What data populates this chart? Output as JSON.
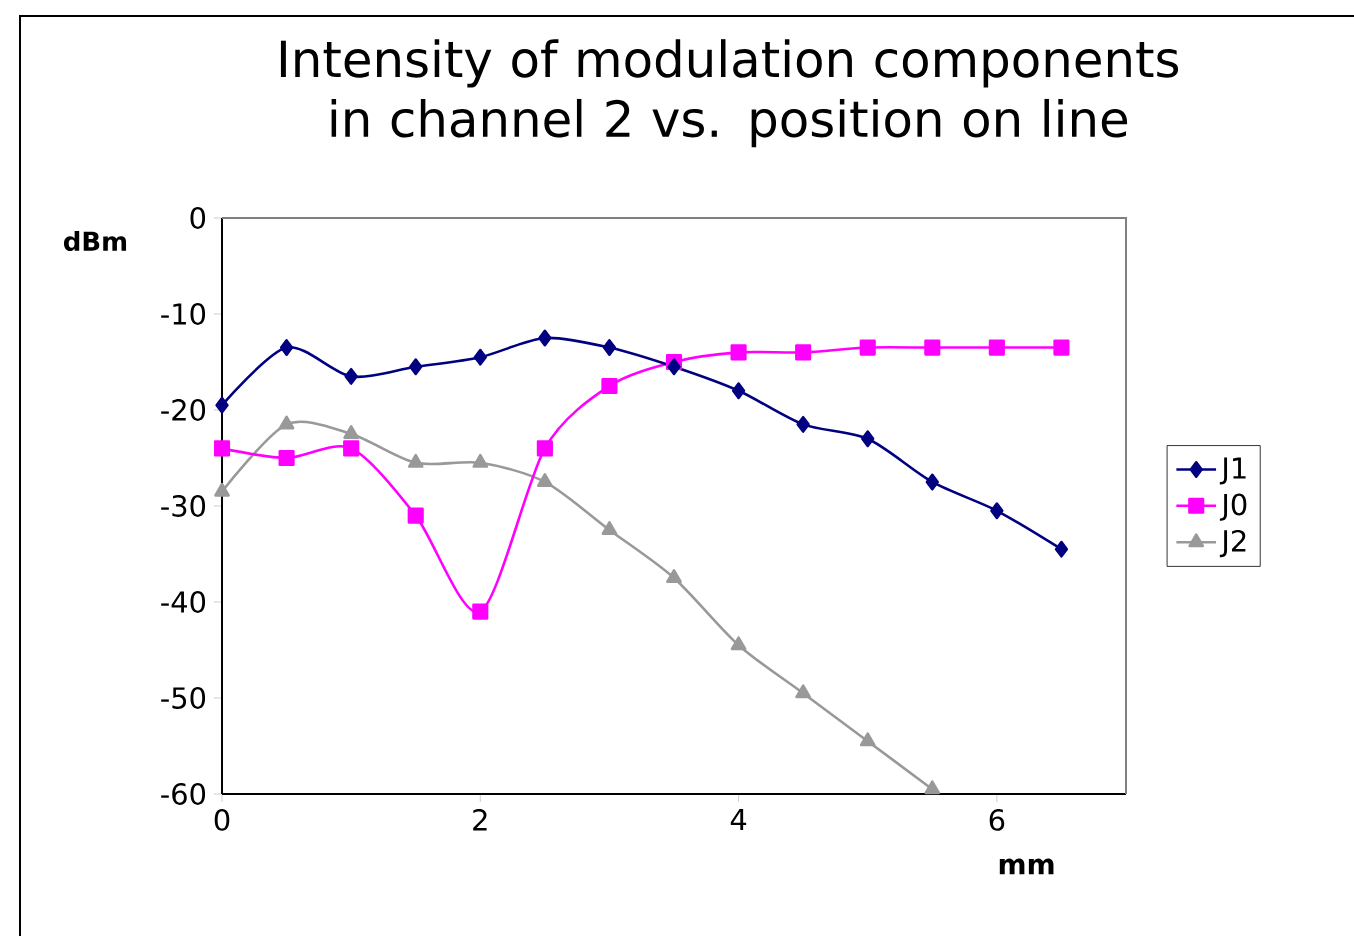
{
  "chart_data": {
    "type": "line",
    "title": "Intensity of modulation components in channel 2 vs. position on line",
    "xlabel": "mm",
    "ylabel": "dBm",
    "x": [
      0,
      0.5,
      1,
      1.5,
      2,
      2.5,
      3,
      3.5,
      4,
      4.5,
      5,
      5.5,
      6,
      6.5
    ],
    "series": [
      {
        "name": "J1",
        "color": "#000080",
        "marker": "diamond",
        "values": [
          -19.5,
          -13.5,
          -16.5,
          -15.5,
          -14.5,
          -12.5,
          -13.5,
          -15.5,
          -18,
          -21.5,
          -23,
          -27.5,
          -30.5,
          -34.5
        ]
      },
      {
        "name": "J0",
        "color": "#ff00ff",
        "marker": "square",
        "values": [
          -24,
          -25,
          -24,
          -31,
          -41,
          -24,
          -17.5,
          -15,
          -14,
          -14,
          -13.5,
          -13.5,
          -13.5,
          -13.5
        ]
      },
      {
        "name": "J2",
        "color": "#999999",
        "marker": "triangle",
        "values": [
          -28.5,
          -21.5,
          -22.5,
          -25.5,
          -25.5,
          -27.5,
          -32.5,
          -37.5,
          -44.5,
          -49.5,
          -54.5,
          -59.5,
          null,
          null
        ]
      }
    ],
    "xlim": [
      0,
      7
    ],
    "ylim": [
      -60,
      0
    ],
    "xticks": [
      0,
      2,
      4,
      6
    ],
    "yticks": [
      0,
      -10,
      -20,
      -30,
      -40,
      -50,
      -60
    ],
    "grid": false,
    "legend": "right",
    "line_style": "solid"
  }
}
